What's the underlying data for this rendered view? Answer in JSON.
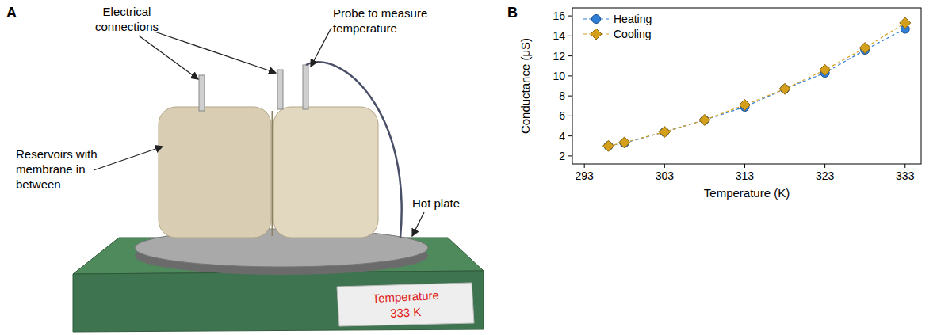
{
  "panel_a": {
    "letter": "A",
    "labels": {
      "reservoirs": [
        "Reservoirs with",
        "membrane in",
        "between"
      ],
      "electrical": [
        "Electrical",
        "connections"
      ],
      "probe": [
        "Probe to measure",
        "temperature"
      ],
      "hot_plate": [
        "Hot plate"
      ]
    },
    "display": [
      "Temperature",
      "333 K"
    ]
  },
  "panel_b": {
    "letter": "B"
  },
  "chart_data": {
    "type": "line",
    "x_label": "Temperature (K)",
    "y_label": "Conductance (μS)",
    "x": [
      296,
      298,
      303,
      308,
      313,
      318,
      323,
      328,
      333
    ],
    "series": [
      {
        "name": "Heating",
        "color": "#2f7ed8",
        "marker": "circle",
        "line_style": "dashed",
        "values": [
          3.0,
          3.3,
          4.4,
          5.6,
          6.9,
          8.7,
          10.3,
          12.6,
          14.7
        ]
      },
      {
        "name": "Cooling",
        "color": "#d4a01c",
        "marker": "diamond",
        "line_style": "dashed",
        "values": [
          3.0,
          3.35,
          4.4,
          5.6,
          7.1,
          8.7,
          10.6,
          12.8,
          15.3
        ]
      }
    ],
    "xlim": [
      291.5,
      335
    ],
    "xticks": [
      293,
      303,
      313,
      323,
      333
    ],
    "ylim": [
      1.2,
      16.8
    ],
    "yticks": [
      2,
      4,
      6,
      8,
      10,
      12,
      14,
      16
    ],
    "legend": "upper left",
    "grid": false
  }
}
